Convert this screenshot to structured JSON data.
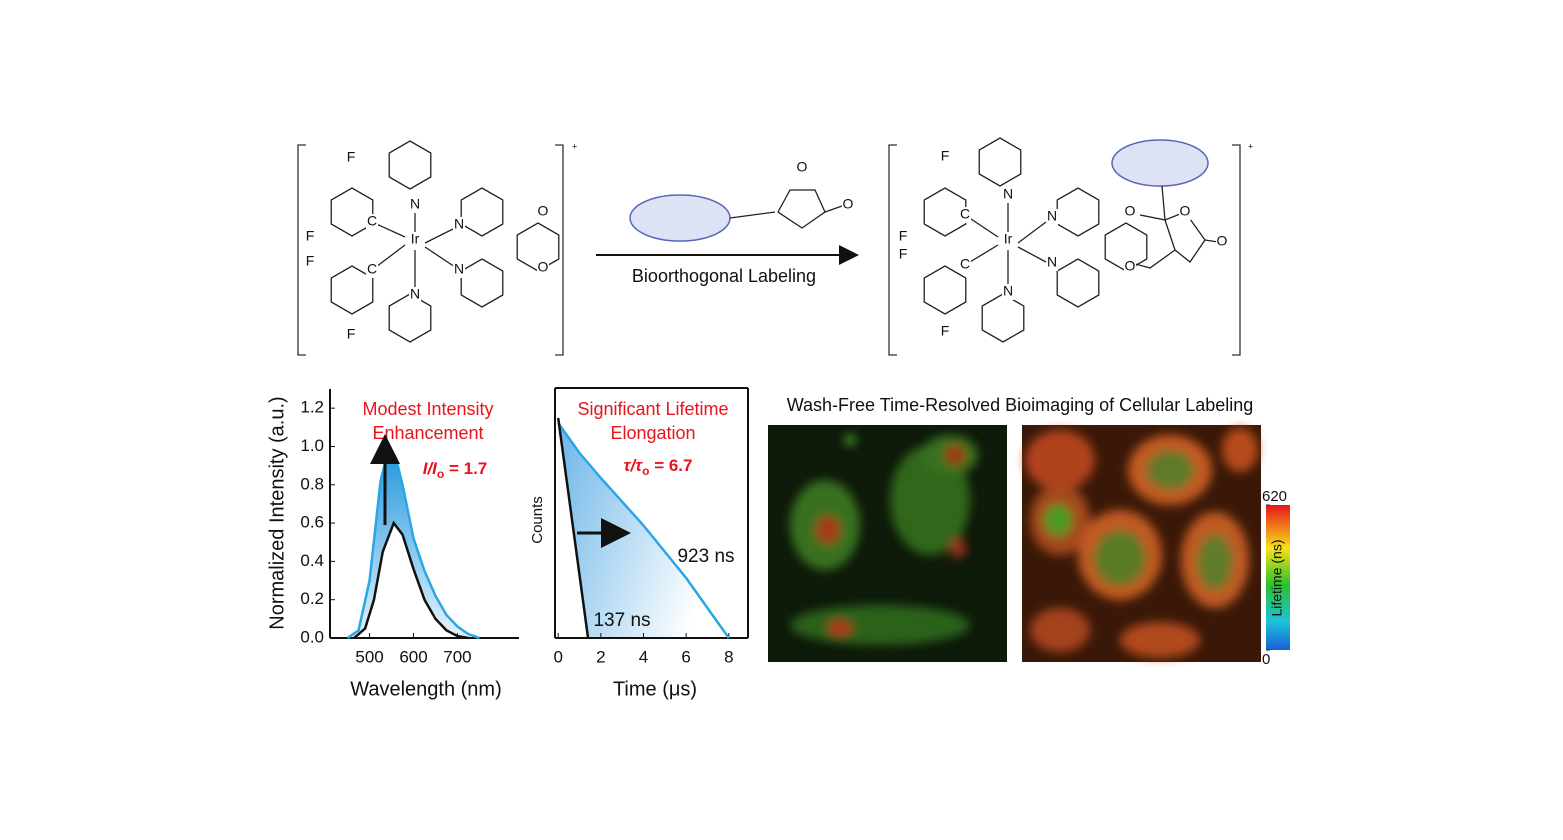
{
  "scheme": {
    "reagent_label": "Bioorthogonal Labeling",
    "reactant": {
      "atoms": [
        "F",
        "F",
        "F",
        "F",
        "N",
        "C",
        "Ir",
        "N",
        "N",
        "C",
        "N",
        "O",
        "O"
      ],
      "charge": "+"
    },
    "reagent": {
      "atoms": [
        "O",
        "O"
      ]
    },
    "product": {
      "atoms": [
        "F",
        "F",
        "F",
        "F",
        "N",
        "C",
        "Ir",
        "N",
        "N",
        "C",
        "N",
        "O",
        "O",
        "O",
        "O"
      ],
      "charge": "+"
    }
  },
  "chart_data": [
    {
      "type": "line",
      "x_label": "Wavelength (nm)",
      "y_label": "Normalized Intensity (a.u.)",
      "annotation": {
        "lines": [
          "Modest Intensity",
          "Enhancement"
        ],
        "ratio": [
          "I/I",
          "o",
          " = 1.7"
        ]
      },
      "xlim": [
        410,
        840
      ],
      "xticks": [
        500,
        600,
        700
      ],
      "ylim": [
        0,
        1.3
      ],
      "yticks": [
        {
          "value": 0,
          "label": "0.0"
        },
        0.2,
        0.4,
        0.6,
        0.8,
        {
          "value": 1,
          "label": "1.0"
        },
        1.2
      ],
      "series": [
        {
          "color": "#2aa6e6",
          "x": [
            450,
            475,
            500,
            525,
            545,
            560,
            575,
            600,
            625,
            650,
            675,
            700,
            725,
            750
          ],
          "values": [
            0.0,
            0.04,
            0.3,
            0.82,
            1.0,
            0.94,
            0.8,
            0.52,
            0.35,
            0.22,
            0.12,
            0.06,
            0.02,
            0.0
          ]
        },
        {
          "color": "#111111",
          "x": [
            465,
            490,
            510,
            530,
            555,
            575,
            600,
            625,
            650,
            675,
            700,
            725
          ],
          "values": [
            0.0,
            0.05,
            0.2,
            0.45,
            0.6,
            0.54,
            0.36,
            0.2,
            0.1,
            0.04,
            0.01,
            0.0
          ]
        }
      ]
    },
    {
      "type": "line",
      "x_label": "Time (μs)",
      "y_label": "Counts",
      "annotation": {
        "lines": [
          "Significant Lifetime",
          "Elongation"
        ],
        "ratio": [
          "τ/τ",
          "o",
          " = 6.7"
        ]
      },
      "xlim": [
        -0.15,
        8.9
      ],
      "xticks": [
        0,
        2,
        4,
        6,
        8
      ],
      "ylim": [
        0,
        1
      ],
      "series": [
        {
          "color": "#2aa6e6",
          "name": "923 ns",
          "x": [
            0,
            1,
            2,
            4,
            6,
            8
          ],
          "values": [
            0.86,
            0.74,
            0.64,
            0.45,
            0.24,
            0.0
          ]
        },
        {
          "color": "#111111",
          "name": "137 ns",
          "x": [
            0,
            1.4
          ],
          "values": [
            0.88,
            0.0
          ]
        }
      ]
    }
  ],
  "imaging": {
    "title": "Wash-Free Time-Resolved Bioimaging of Cellular Labeling",
    "colorbar": {
      "label": "Lifetime (ns)",
      "lim": [
        0,
        620
      ],
      "ticks": [
        0,
        620
      ]
    }
  }
}
